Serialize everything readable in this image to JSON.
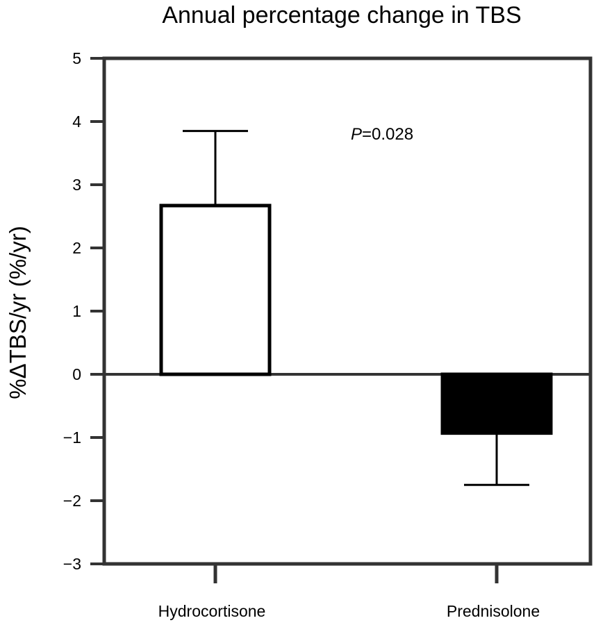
{
  "chart_data": {
    "type": "bar",
    "title": "Annual percentage change in TBS",
    "ylabel": "%ΔTBS/yr (%/yr)",
    "xlabel": "",
    "categories": [
      "Hydrocortisone",
      "Prednisolone"
    ],
    "values": [
      2.67,
      -0.93
    ],
    "error_bars": [
      1.18,
      0.82
    ],
    "bar_colors": [
      "#ffffff",
      "#000000"
    ],
    "ylim": [
      -3,
      5
    ],
    "yticks": [
      5,
      4,
      3,
      2,
      1,
      0,
      -1,
      -2,
      -3
    ],
    "ytick_labels": [
      "5",
      "4",
      "3",
      "2",
      "1",
      "0",
      "−1",
      "−2",
      "−3"
    ],
    "grid": false,
    "annotation": {
      "italic_part": "P",
      "rest": "=0.028"
    }
  },
  "colors": {
    "axis": "#333333",
    "bar_stroke": "#000000"
  }
}
